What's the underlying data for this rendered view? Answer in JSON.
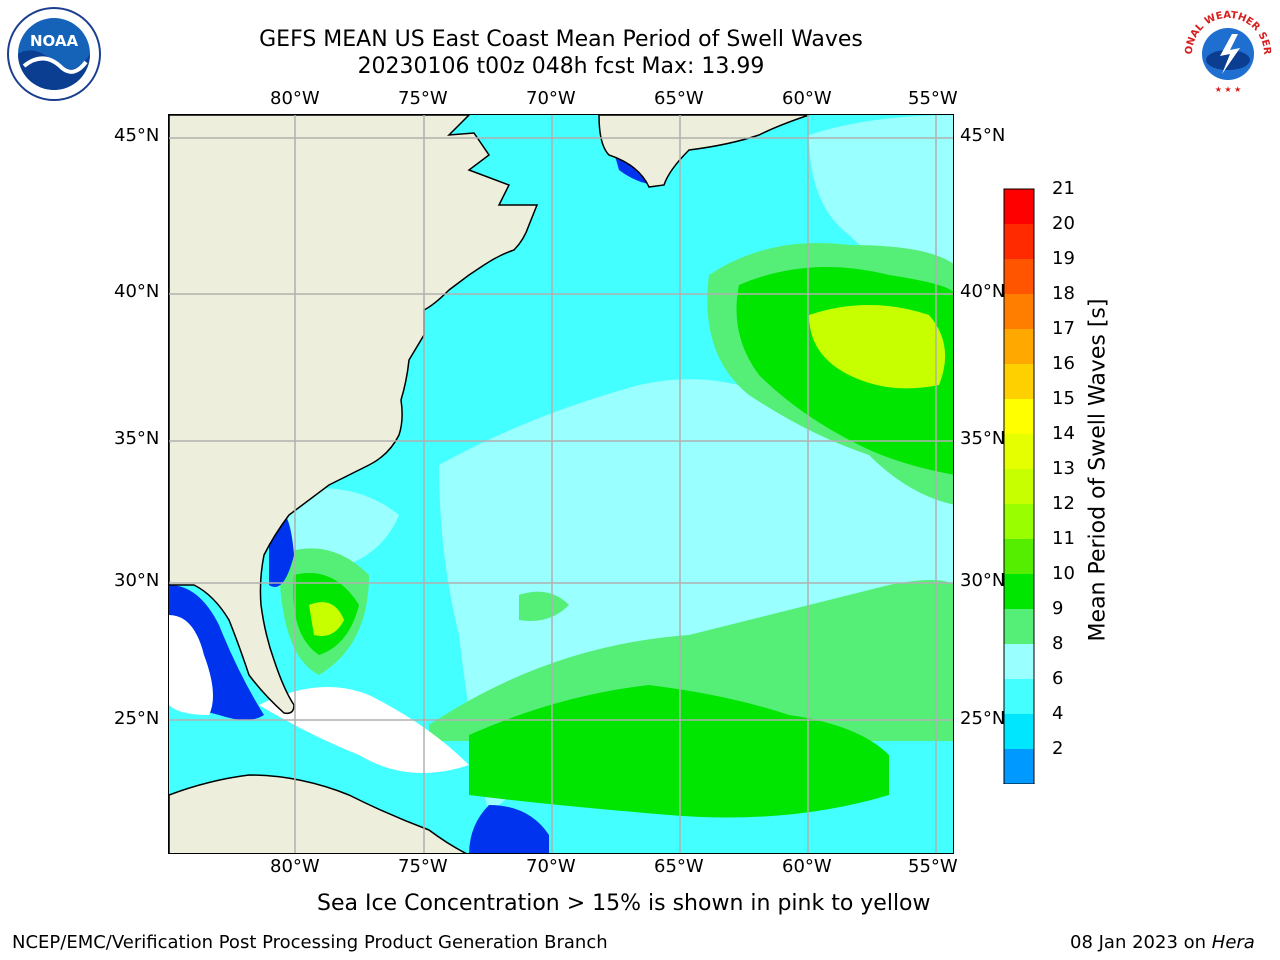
{
  "title": {
    "line1": "GEFS MEAN US East Coast Mean Period of Swell Waves",
    "line2": "20230106 t00z 048h fcst   Max: 13.99"
  },
  "map": {
    "lon_labels_top": [
      "80°W",
      "75°W",
      "70°W",
      "65°W",
      "60°W",
      "55°W"
    ],
    "lon_labels_bottom": [
      "80°W",
      "75°W",
      "70°W",
      "65°W",
      "60°W",
      "55°W"
    ],
    "lat_labels_left": [
      "45°N",
      "40°N",
      "35°N",
      "30°N",
      "25°N"
    ],
    "lat_labels_right": [
      "45°N",
      "40°N",
      "35°N",
      "30°N",
      "25°N"
    ],
    "colors": {
      "land": "#eeeedc",
      "ocean_base": "#44ffff",
      "grid": "#b0b0b0",
      "coast": "#000000"
    }
  },
  "colorbar": {
    "label": "Mean Period of Swell Waves [s]",
    "ticks": [
      "21",
      "20",
      "19",
      "18",
      "17",
      "16",
      "15",
      "14",
      "13",
      "12",
      "11",
      "10",
      "9",
      "8",
      "6",
      "4",
      "2"
    ],
    "colors": [
      "#ff0000",
      "#ff2a00",
      "#ff5400",
      "#ff7e00",
      "#ffa800",
      "#ffd000",
      "#ffff00",
      "#e6ff00",
      "#c8ff00",
      "#99ff00",
      "#55ee00",
      "#00e600",
      "#55ee77",
      "#99ffff",
      "#44ffff",
      "#00e6ff",
      "#0099ff",
      "#0000ee"
    ]
  },
  "logos": {
    "noaa": {
      "name": "noaa-logo",
      "text": "NOAA"
    },
    "nws": {
      "name": "nws-logo",
      "text": "NATIONAL WEATHER SERVICE"
    }
  },
  "footer": {
    "note": "Sea Ice Concentration > 15% is shown in pink to yellow",
    "credit": "NCEP/EMC/Verification Post Processing Product Generation Branch",
    "run_date": "08 Jan 2023 on",
    "machine": "Hera"
  }
}
